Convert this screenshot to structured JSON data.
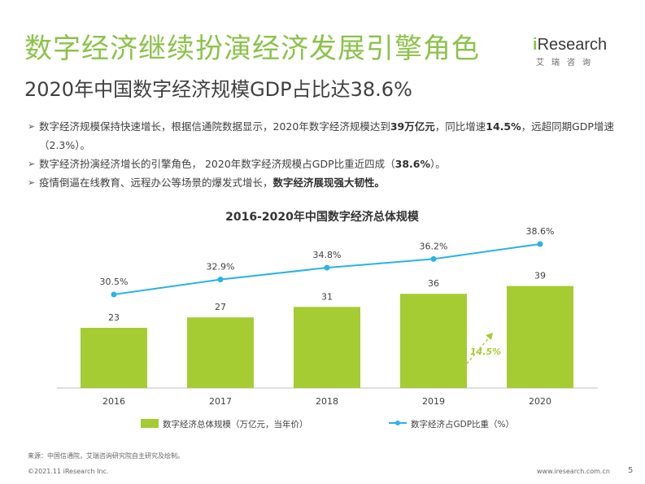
{
  "page": {
    "title": "数字经济继续扮演经济发展引擎角色",
    "subtitle": "2020年中国数字经济规模GDP占比达38.6%"
  },
  "logo": {
    "main_i": "i",
    "main_rest": "Research",
    "sub": "艾瑞咨询"
  },
  "bullets": [
    {
      "parts": [
        {
          "t": "数字经济规模保持快速增长，根据信通院数据显示，2020年数字经济规模达到"
        },
        {
          "t": "39万亿元",
          "b": true
        },
        {
          "t": "，同比增速"
        },
        {
          "t": "14.5%",
          "b": true
        },
        {
          "t": "，远超同期GDP增速（2.3%）。"
        }
      ]
    },
    {
      "parts": [
        {
          "t": "数字经济扮演经济增长的引擎角色， 2020年数字经济规模占GDP比重近四成（"
        },
        {
          "t": "38.6%",
          "b": true
        },
        {
          "t": "）。"
        }
      ]
    },
    {
      "parts": [
        {
          "t": "疫情倒逼在线教育、远程办公等场景的爆发式增长，"
        },
        {
          "t": "数字经济展现强大韧性。",
          "b": true
        }
      ]
    }
  ],
  "chart_data": {
    "type": "bar",
    "title": "2016-2020年中国数字经济总体规模",
    "categories": [
      "2016",
      "2017",
      "2018",
      "2019",
      "2020"
    ],
    "series": [
      {
        "name": "数字经济总体规模（万亿元，当年价）",
        "type": "bar",
        "values": [
          23,
          27,
          31,
          36,
          39
        ],
        "labels": [
          "23",
          "27",
          "31",
          "36",
          "39"
        ],
        "color": "#a5cc32"
      },
      {
        "name": "数字经济占GDP比重（%）",
        "type": "line",
        "values": [
          30.5,
          32.9,
          34.8,
          36.2,
          38.6
        ],
        "labels": [
          "30.5%",
          "32.9%",
          "34.8%",
          "36.2%",
          "38.6%"
        ],
        "color": "#2ab3e6"
      }
    ],
    "annotation": {
      "text": "14.5%",
      "color": "#a5cc32"
    },
    "ylim_bar": [
      0,
      50
    ],
    "ylim_line": [
      0,
      41
    ],
    "grid": false,
    "legend": "bottom"
  },
  "footer": {
    "source": "来源：中国信通院，艾瑞咨询研究院自主研究及绘制。",
    "copyright": "©2021.11 iResearch Inc.",
    "website": "www.iresearch.com.cn",
    "page_number": "5"
  }
}
